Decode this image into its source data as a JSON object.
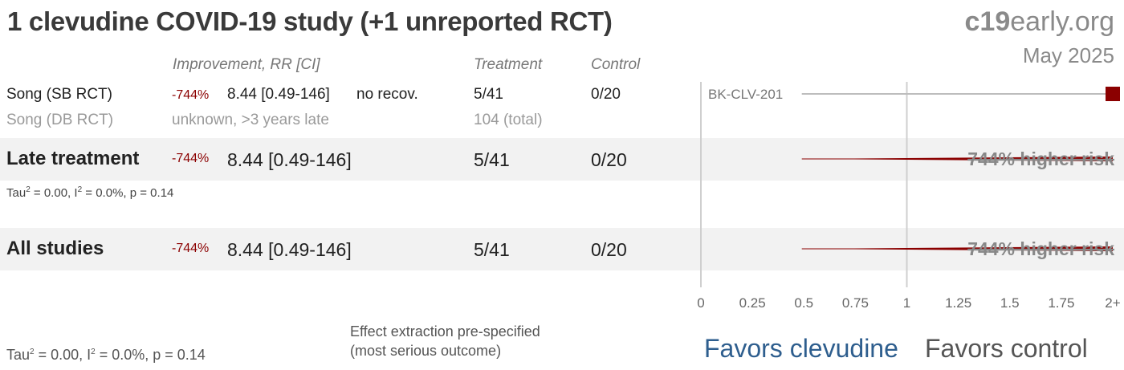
{
  "header": {
    "title": "1 clevudine COVID-19 study (+1 unreported RCT)",
    "brand_bold": "c19",
    "brand_rest": "early.org",
    "date": "May 2025"
  },
  "columns": {
    "improvement": "Improvement, RR [CI]",
    "treatment": "Treatment",
    "control": "Control"
  },
  "studies": [
    {
      "name": "Song (SB RCT)",
      "pct": "-744%",
      "rr": "8.44 [0.49-146]",
      "outcome": "no recov.",
      "treatment": "5/41",
      "control": "0/20"
    },
    {
      "name": "Song (DB RCT)",
      "status": "unknown, >3 years late",
      "treatment": "104 (total)"
    }
  ],
  "late": {
    "label": "Late treatment",
    "pct": "-744%",
    "rr": "8.44 [0.49-146]",
    "treatment": "5/41",
    "control": "0/20",
    "tau": "Tau",
    "i": ", I",
    "stat_rest": " = 0.0%, p = 0.14",
    "stat_eq": " = 0.00",
    "risk": "744% higher risk"
  },
  "all": {
    "label": "All studies",
    "pct": "-744%",
    "rr": "8.44 [0.49-146]",
    "treatment": "5/41",
    "control": "0/20",
    "risk": "744% higher risk"
  },
  "footer": {
    "tau": "Tau",
    "i": ", I",
    "stat_eq": " = 0.00",
    "stat_rest": " = 0.0%, p = 0.14",
    "note_line1": "Effect extraction pre-specified",
    "note_line2": "(most serious outcome)",
    "favors_treatment": "Favors clevudine",
    "favors_control": "Favors control"
  },
  "chart_data": {
    "type": "forest",
    "xlim": [
      0,
      2
    ],
    "xticks": [
      0,
      0.25,
      0.5,
      0.75,
      1,
      1.25,
      1.5,
      1.75,
      2
    ],
    "xtick_labels": [
      "0",
      "0.25",
      "0.5",
      "0.75",
      "1",
      "1.25",
      "1.5",
      "1.75",
      "2+"
    ],
    "reference_line": 1,
    "rows": [
      {
        "label": "BK-CLV-201",
        "rr": 8.44,
        "ci": [
          0.49,
          146
        ],
        "kind": "study"
      },
      {
        "label": "Late treatment",
        "rr": 8.44,
        "ci": [
          0.49,
          146
        ],
        "kind": "summary"
      },
      {
        "label": "All studies",
        "rr": 8.44,
        "ci": [
          0.49,
          146
        ],
        "kind": "summary"
      }
    ],
    "colors": {
      "marker": "#8b0000",
      "ci_line": "#bdbdbd",
      "axis": "#cfcfcf"
    }
  }
}
